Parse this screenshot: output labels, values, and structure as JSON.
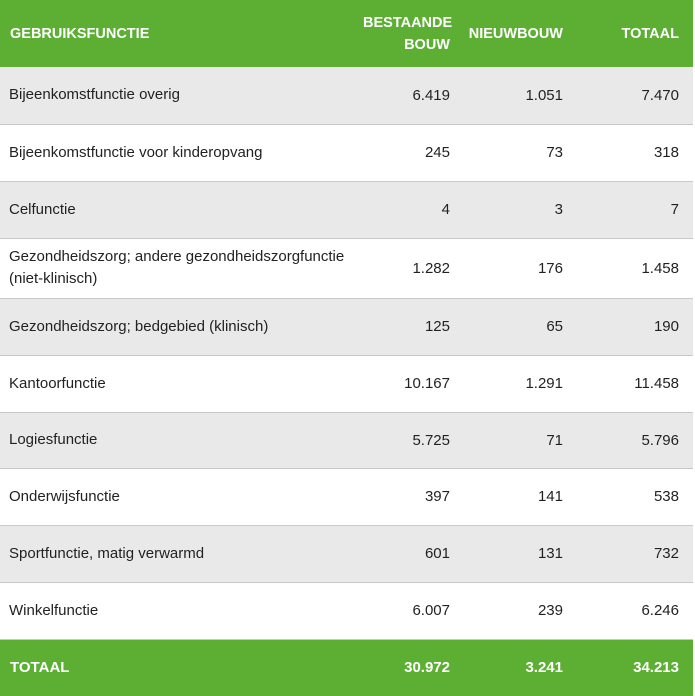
{
  "columns": {
    "function": "GEBRUIKSFUNCTIE",
    "existing_line1": "BESTAANDE",
    "existing_line2": "BOUW",
    "new_build": "NIEUWBOUW",
    "total": "TOTAAL"
  },
  "rows": [
    {
      "function": "Bijeenkomstfunctie overig",
      "existing": "6.419",
      "new_build": "1.051",
      "total": "7.470"
    },
    {
      "function": "Bijeenkomstfunctie voor kinderopvang",
      "existing": "245",
      "new_build": "73",
      "total": "318"
    },
    {
      "function": "Celfunctie",
      "existing": "4",
      "new_build": "3",
      "total": "7"
    },
    {
      "function": "Gezondheidszorg; andere gezondheidszorgfunctie (niet-klinisch)",
      "existing": "1.282",
      "new_build": "176",
      "total": "1.458"
    },
    {
      "function": "Gezondheidszorg; bedgebied (klinisch)",
      "existing": "125",
      "new_build": "65",
      "total": "190"
    },
    {
      "function": "Kantoorfunctie",
      "existing": "10.167",
      "new_build": "1.291",
      "total": "11.458"
    },
    {
      "function": "Logiesfunctie",
      "existing": "5.725",
      "new_build": "71",
      "total": "5.796"
    },
    {
      "function": "Onderwijsfunctie",
      "existing": "397",
      "new_build": "141",
      "total": "538"
    },
    {
      "function": "Sportfunctie, matig verwarmd",
      "existing": "601",
      "new_build": "131",
      "total": "732"
    },
    {
      "function": "Winkelfunctie",
      "existing": "6.007",
      "new_build": "239",
      "total": "6.246"
    }
  ],
  "totals": {
    "label": "TOTAAL",
    "existing": "30.972",
    "new_build": "3.241",
    "total": "34.213"
  },
  "colors": {
    "header_green": "#5daf34",
    "stripe_grey": "#e9e9e9"
  }
}
